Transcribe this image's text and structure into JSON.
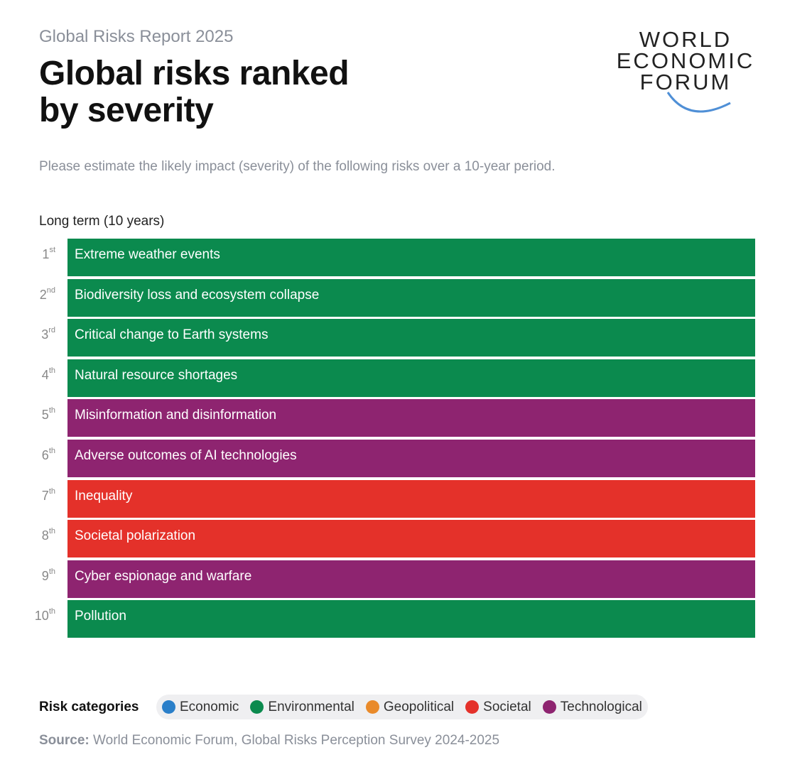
{
  "header": {
    "kicker": "Global Risks Report 2025",
    "title_lines": [
      "Global risks ranked",
      "by severity"
    ],
    "logo_lines": [
      "WORLD",
      "ECONOMIC",
      "FORUM"
    ]
  },
  "question": "Please estimate the likely impact (severity) of the following risks over a 10-year period.",
  "section": "Long term (10 years)",
  "ranks": [
    {
      "number": "1",
      "suffix": "st",
      "label": "Extreme weather events",
      "color": "#0b8a4e"
    },
    {
      "number": "2",
      "suffix": "nd",
      "label": "Biodiversity loss and ecosystem collapse",
      "color": "#0b8a4e"
    },
    {
      "number": "3",
      "suffix": "rd",
      "label": "Critical change to Earth systems",
      "color": "#0b8a4e"
    },
    {
      "number": "4",
      "suffix": "th",
      "label": "Natural resource shortages",
      "color": "#0b8a4e"
    },
    {
      "number": "5",
      "suffix": "th",
      "label": "Misinformation and disinformation",
      "color": "#8e2470"
    },
    {
      "number": "6",
      "suffix": "th",
      "label": "Adverse outcomes of AI technologies",
      "color": "#8e2470"
    },
    {
      "number": "7",
      "suffix": "th",
      "label": "Inequality",
      "color": "#e4312a"
    },
    {
      "number": "8",
      "suffix": "th",
      "label": "Societal polarization",
      "color": "#e4312a"
    },
    {
      "number": "9",
      "suffix": "th",
      "label": "Cyber espionage and warfare",
      "color": "#8e2470"
    },
    {
      "number": "10",
      "suffix": "th",
      "label": "Pollution",
      "color": "#0b8a4e"
    }
  ],
  "legend": {
    "title": "Risk categories",
    "items": [
      {
        "name": "Economic",
        "color": "#2a7fc9"
      },
      {
        "name": "Environmental",
        "color": "#0b8a4e"
      },
      {
        "name": "Geopolitical",
        "color": "#e98a2a"
      },
      {
        "name": "Societal",
        "color": "#e4312a"
      },
      {
        "name": "Technological",
        "color": "#8e2470"
      }
    ]
  },
  "source": {
    "label": "Source:",
    "text": "World Economic Forum, Global Risks Perception Survey 2024-2025"
  }
}
